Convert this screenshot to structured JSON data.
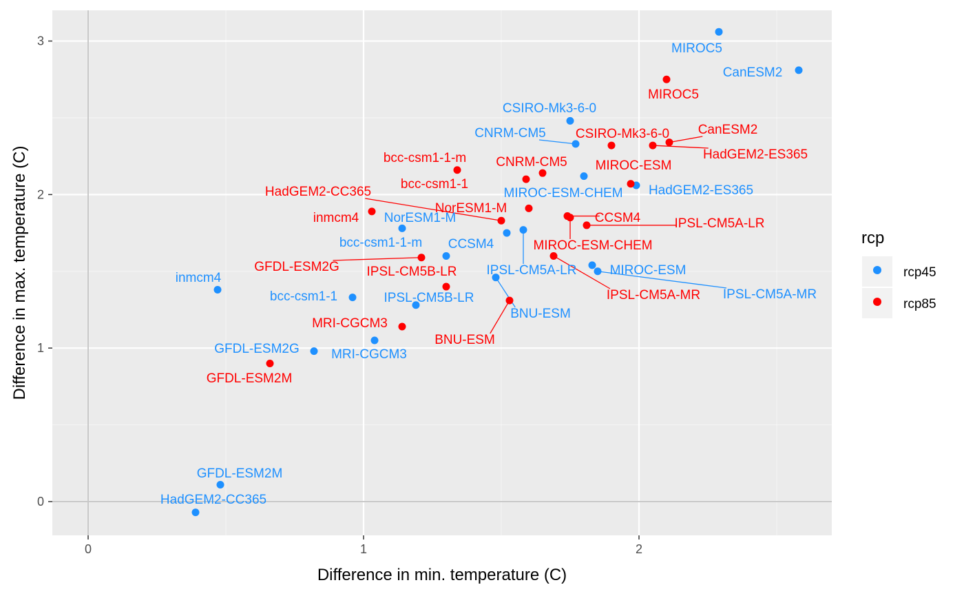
{
  "chart_data": {
    "type": "scatter",
    "title": "",
    "xlabel": "Difference in min. temperature (C)",
    "ylabel": "Difference in max. temperature (C)",
    "xlim": [
      -0.13,
      2.7
    ],
    "ylim": [
      -0.22,
      3.2
    ],
    "x_ticks": [
      0,
      1,
      2
    ],
    "y_ticks": [
      0,
      1,
      2,
      3
    ],
    "grid": true,
    "legend": {
      "title": "rcp",
      "position": "right",
      "entries": [
        {
          "name": "rcp45",
          "color": "#1e90ff"
        },
        {
          "name": "rcp85",
          "color": "#ff0000"
        }
      ]
    },
    "series": [
      {
        "name": "rcp45",
        "color": "#1e90ff",
        "points": [
          {
            "label": "MIROC5",
            "x": 2.29,
            "y": 3.06
          },
          {
            "label": "CanESM2",
            "x": 2.58,
            "y": 2.81
          },
          {
            "label": "CSIRO-Mk3-6-0",
            "x": 1.75,
            "y": 2.48
          },
          {
            "label": "CNRM-CM5",
            "x": 1.77,
            "y": 2.33
          },
          {
            "label": "MIROC-ESM-CHEM",
            "x": 1.8,
            "y": 2.12
          },
          {
            "label": "HadGEM2-ES365",
            "x": 1.99,
            "y": 2.06
          },
          {
            "label": "NorESM1-M",
            "x": 1.14,
            "y": 1.78
          },
          {
            "label": "bcc-csm1-1-m",
            "x": 1.3,
            "y": 1.6
          },
          {
            "label": "CCSM4",
            "x": 1.52,
            "y": 1.75
          },
          {
            "label": "IPSL-CM5A-LR",
            "x": 1.58,
            "y": 1.77
          },
          {
            "label": "MIROC-ESM",
            "x": 1.83,
            "y": 1.54
          },
          {
            "label": "IPSL-CM5A-MR",
            "x": 1.85,
            "y": 1.5
          },
          {
            "label": "inmcm4",
            "x": 0.47,
            "y": 1.38
          },
          {
            "label": "bcc-csm1-1",
            "x": 0.96,
            "y": 1.33
          },
          {
            "label": "IPSL-CM5B-LR",
            "x": 1.19,
            "y": 1.28
          },
          {
            "label": "BNU-ESM",
            "x": 1.48,
            "y": 1.46
          },
          {
            "label": "MRI-CGCM3",
            "x": 1.04,
            "y": 1.05
          },
          {
            "label": "GFDL-ESM2G",
            "x": 0.82,
            "y": 0.98
          },
          {
            "label": "GFDL-ESM2M",
            "x": 0.48,
            "y": 0.11
          },
          {
            "label": "HadGEM2-CC365",
            "x": 0.39,
            "y": -0.07
          }
        ]
      },
      {
        "name": "rcp85",
        "color": "#ff0000",
        "points": [
          {
            "label": "MIROC5",
            "x": 2.1,
            "y": 2.75
          },
          {
            "label": "CanESM2",
            "x": 2.11,
            "y": 2.34
          },
          {
            "label": "HadGEM2-ES365",
            "x": 2.05,
            "y": 2.32
          },
          {
            "label": "CSIRO-Mk3-6-0",
            "x": 1.9,
            "y": 2.32
          },
          {
            "label": "MIROC-ESM",
            "x": 1.97,
            "y": 2.07
          },
          {
            "label": "bcc-csm1-1-m",
            "x": 1.34,
            "y": 2.16
          },
          {
            "label": "CNRM-CM5",
            "x": 1.65,
            "y": 2.14
          },
          {
            "label": "bcc-csm1-1",
            "x": 1.59,
            "y": 2.1
          },
          {
            "label": "NorESM1-M",
            "x": 1.6,
            "y": 1.91
          },
          {
            "label": "inmcm4",
            "x": 1.03,
            "y": 1.89
          },
          {
            "label": "HadGEM2-CC365",
            "x": 1.5,
            "y": 1.83
          },
          {
            "label": "CCSM4",
            "x": 1.74,
            "y": 1.86
          },
          {
            "label": "IPSL-CM5A-LR",
            "x": 1.81,
            "y": 1.8
          },
          {
            "label": "MIROC-ESM-CHEM",
            "x": 1.75,
            "y": 1.85
          },
          {
            "label": "GFDL-ESM2G",
            "x": 1.21,
            "y": 1.59
          },
          {
            "label": "IPSL-CM5A-MR",
            "x": 1.69,
            "y": 1.6
          },
          {
            "label": "IPSL-CM5B-LR",
            "x": 1.3,
            "y": 1.4
          },
          {
            "label": "BNU-ESM",
            "x": 1.53,
            "y": 1.31
          },
          {
            "label": "MRI-CGCM3",
            "x": 1.14,
            "y": 1.14
          },
          {
            "label": "GFDL-ESM2M",
            "x": 0.66,
            "y": 0.9
          }
        ]
      }
    ]
  }
}
